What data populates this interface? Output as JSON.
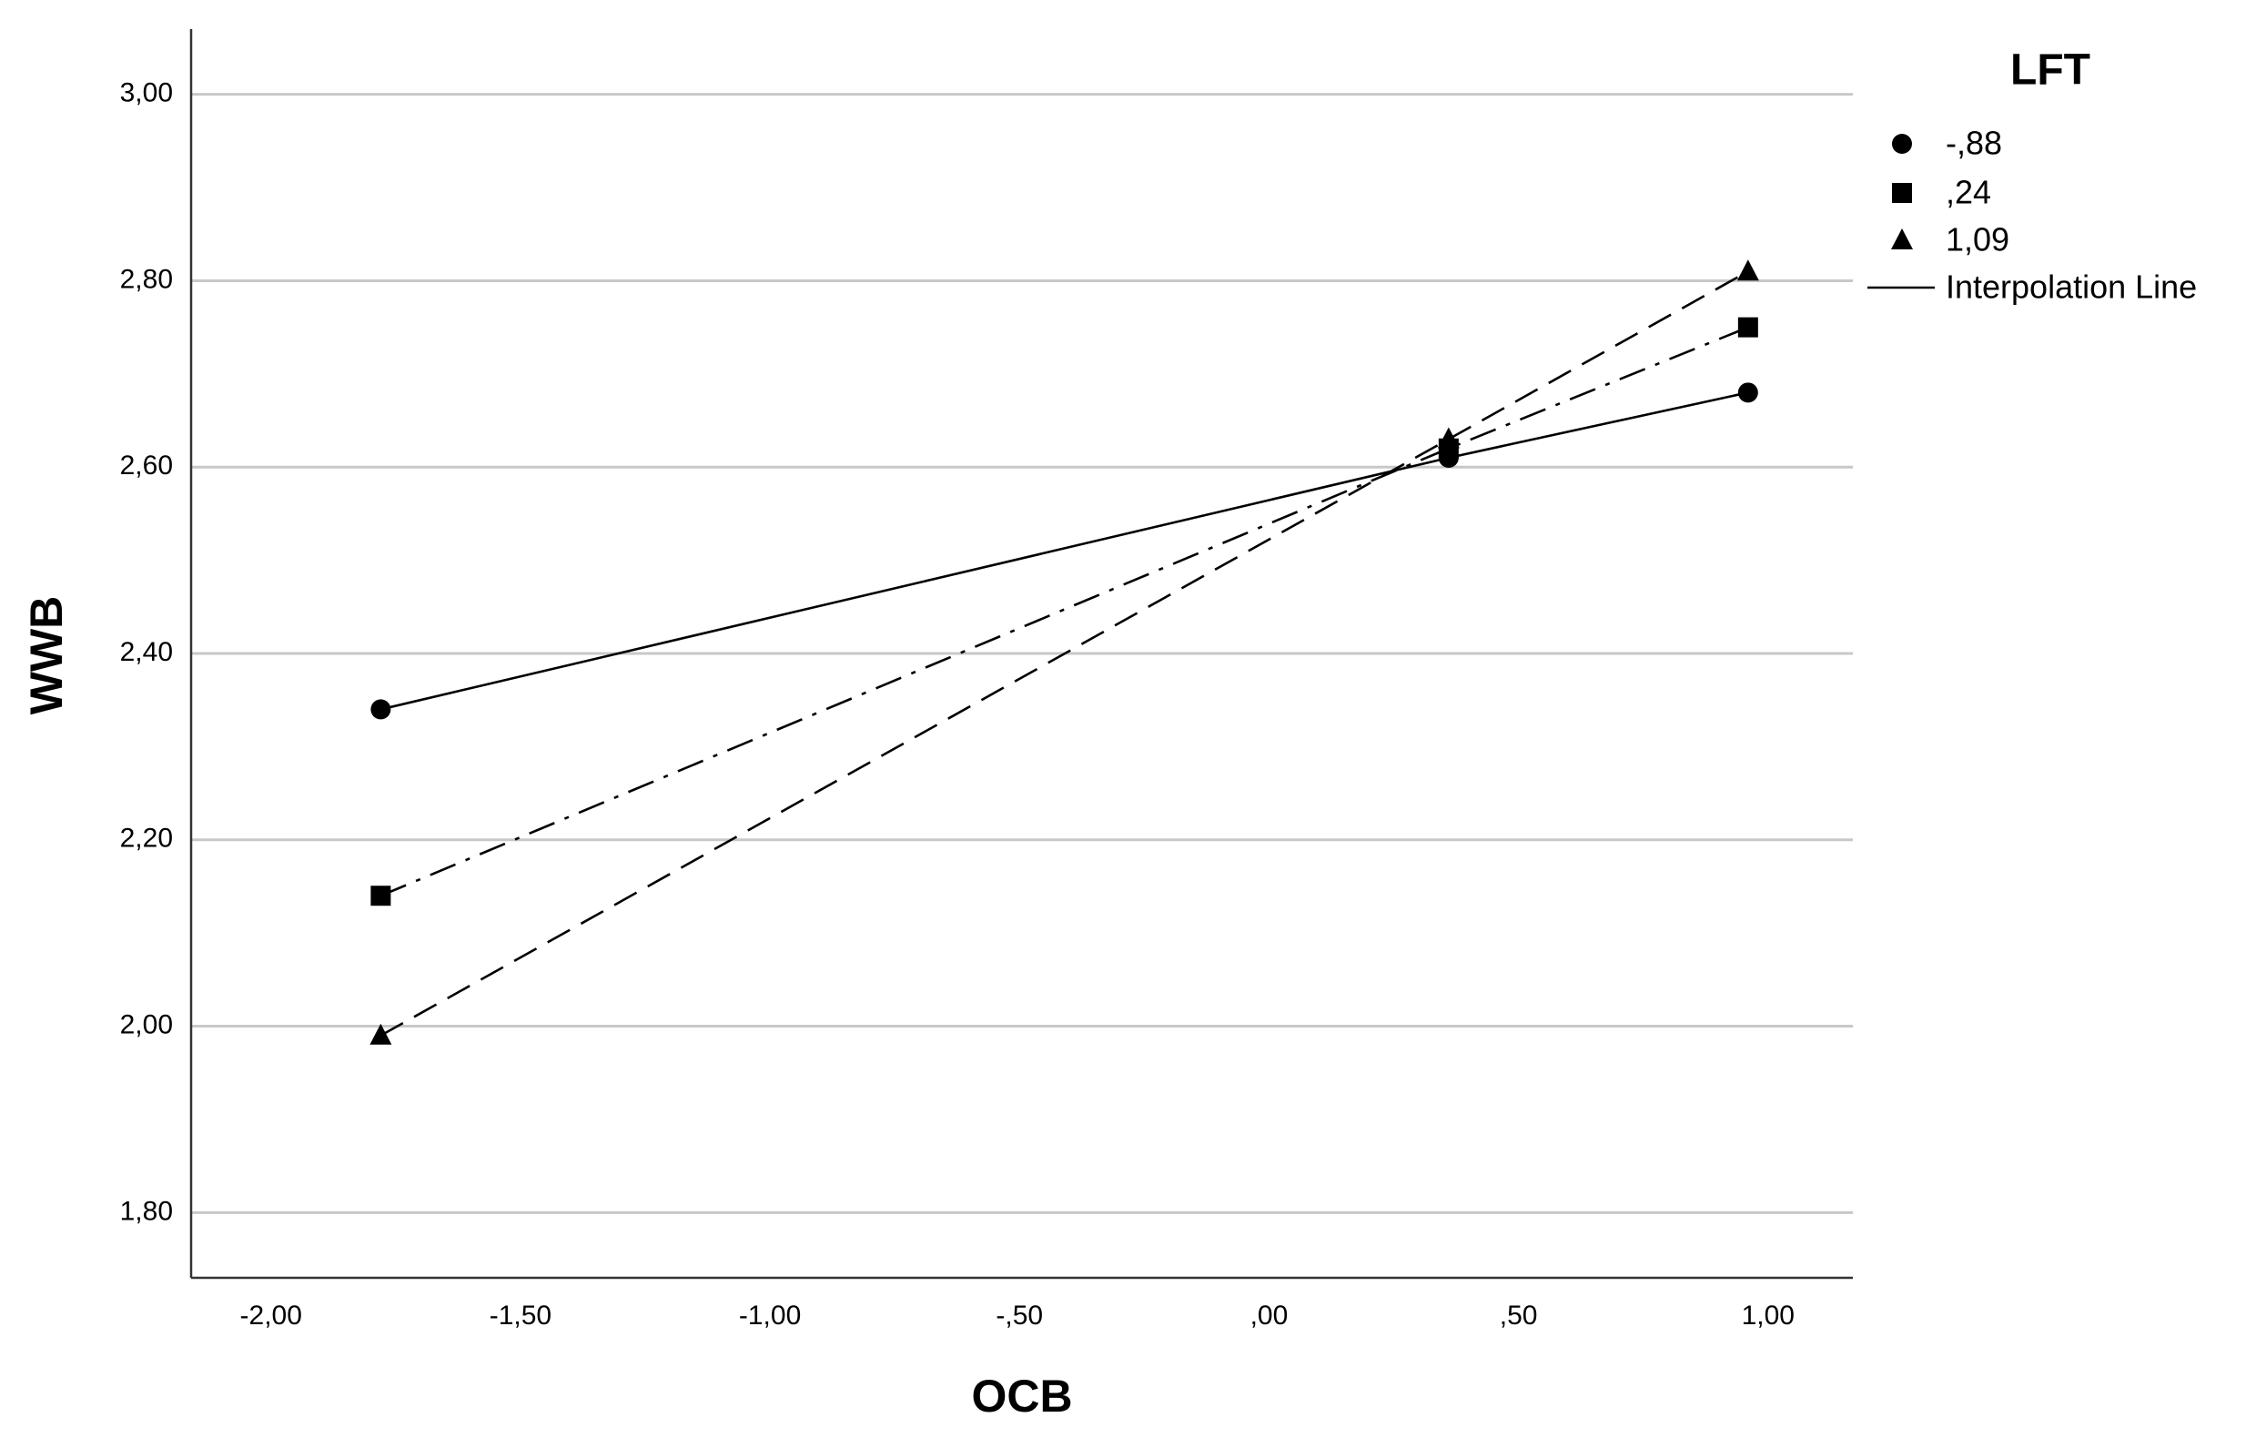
{
  "chart_data": {
    "type": "line",
    "x_label": "OCB",
    "y_label": "WWB",
    "xlim": [
      -2.16,
      1.17
    ],
    "ylim": [
      1.73,
      3.07
    ],
    "xticks": [
      {
        "value": -2,
        "label": "-2,00"
      },
      {
        "value": -1.5,
        "label": "-1,50"
      },
      {
        "value": -1,
        "label": "-1,00"
      },
      {
        "value": -0.5,
        "label": "-,50"
      },
      {
        "value": 0,
        "label": ",00"
      },
      {
        "value": 0.5,
        "label": ",50"
      },
      {
        "value": 1,
        "label": "1,00"
      }
    ],
    "yticks": [
      {
        "value": 1.8,
        "label": "1,80"
      },
      {
        "value": 2,
        "label": "2,00"
      },
      {
        "value": 2.2,
        "label": "2,20"
      },
      {
        "value": 2.4,
        "label": "2,40"
      },
      {
        "value": 2.6,
        "label": "2,60"
      },
      {
        "value": 2.8,
        "label": "2,80"
      },
      {
        "value": 3,
        "label": "3,00"
      }
    ],
    "grid": "y",
    "legend": {
      "title": "LFT",
      "line_label": "Interpolation Line",
      "position": "right"
    },
    "series": [
      {
        "name": "-,88",
        "color": "#000000",
        "marker": "circle",
        "dash": "solid",
        "x": [
          -1.78,
          0.36,
          0.96
        ],
        "values": [
          2.34,
          2.61,
          2.68
        ]
      },
      {
        "name": ",24",
        "color": "#000000",
        "marker": "square",
        "dash": "dashdot",
        "x": [
          -1.78,
          0.36,
          0.96
        ],
        "values": [
          2.14,
          2.62,
          2.75
        ]
      },
      {
        "name": "1,09",
        "color": "#000000",
        "marker": "triangle",
        "dash": "dash",
        "x": [
          -1.78,
          0.36,
          0.96
        ],
        "values": [
          1.99,
          2.63,
          2.81
        ]
      }
    ]
  }
}
